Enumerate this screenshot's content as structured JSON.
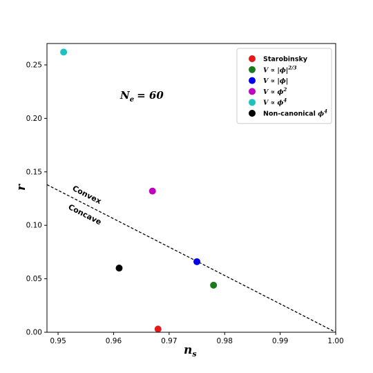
{
  "chart_data": {
    "type": "scatter",
    "title": "",
    "xlabel": "n",
    "xlabel_sub": "s",
    "ylabel": "r",
    "xlim": [
      0.948,
      1.0
    ],
    "ylim": [
      0.0,
      0.27
    ],
    "xticks": [
      0.95,
      0.96,
      0.97,
      0.98,
      0.99,
      1.0
    ],
    "xtick_labels": [
      "0.95",
      "0.96",
      "0.97",
      "0.98",
      "0.99",
      "1.00"
    ],
    "yticks": [
      0.0,
      0.05,
      0.1,
      0.15,
      0.2,
      0.25
    ],
    "ytick_labels": [
      "0.00",
      "0.05",
      "0.10",
      "0.15",
      "0.20",
      "0.25"
    ],
    "grid": false,
    "legend_position": "top-right",
    "series": [
      {
        "name": "Starobinsky",
        "label_parts": [
          {
            "t": "Starobinsky",
            "k": "text"
          }
        ],
        "color": "#e31a1c",
        "x": [
          0.968
        ],
        "y": [
          0.003
        ]
      },
      {
        "name": "V ∝ |ϕ|2/3",
        "label_parts": [
          {
            "t": "V ∝ |ϕ|",
            "k": "math"
          },
          {
            "t": "2/3",
            "k": "sup"
          }
        ],
        "color": "#1b7a1b",
        "x": [
          0.978
        ],
        "y": [
          0.044
        ]
      },
      {
        "name": "V ∝ |ϕ|",
        "label_parts": [
          {
            "t": "V ∝ |ϕ|",
            "k": "math"
          }
        ],
        "color": "#0000ee",
        "x": [
          0.975
        ],
        "y": [
          0.066
        ]
      },
      {
        "name": "V ∝ ϕ2",
        "label_parts": [
          {
            "t": "V ∝ ϕ",
            "k": "math"
          },
          {
            "t": "2",
            "k": "sup"
          }
        ],
        "color": "#c000c0",
        "x": [
          0.967
        ],
        "y": [
          0.132
        ]
      },
      {
        "name": "V ∝ ϕ4",
        "label_parts": [
          {
            "t": "V ∝ ϕ",
            "k": "math"
          },
          {
            "t": "4",
            "k": "sup"
          }
        ],
        "color": "#1ec0c0",
        "x": [
          0.951
        ],
        "y": [
          0.262
        ]
      },
      {
        "name": "Non-canonical ϕ4",
        "label_parts": [
          {
            "t": "Non-canonical ",
            "k": "text"
          },
          {
            "t": "ϕ",
            "k": "math"
          },
          {
            "t": "4",
            "k": "sup"
          }
        ],
        "color": "#000000",
        "x": [
          0.961
        ],
        "y": [
          0.06
        ]
      }
    ],
    "reference_line": {
      "style": "dashed",
      "color": "#000000",
      "x": [
        0.948,
        1.0
      ],
      "y": [
        0.138,
        0.0
      ]
    },
    "annotations": {
      "convex": "Convex",
      "concave": "Concave",
      "ne_main": "N",
      "ne_sub": "e",
      "ne_value": "= 60"
    }
  }
}
